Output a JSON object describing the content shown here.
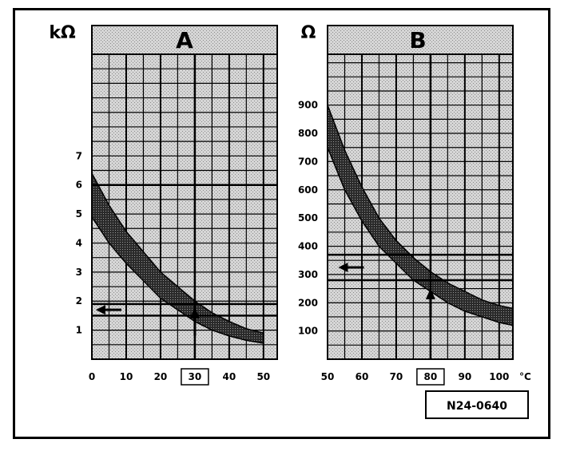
{
  "reference_code": "N24-0640",
  "chart_data": [
    {
      "type": "area",
      "title": "A",
      "ylabel": "kΩ",
      "xlabel": "",
      "xlim": [
        0,
        54
      ],
      "ylim": [
        0,
        10.5
      ],
      "grid": true,
      "x_ticks": [
        "0",
        "10",
        "20",
        "30",
        "40",
        "50"
      ],
      "y_ticks": [
        "1",
        "2",
        "3",
        "4",
        "5",
        "6",
        "7"
      ],
      "highlighted_x_tick": "30",
      "band": {
        "x": [
          0,
          5,
          10,
          15,
          20,
          25,
          30,
          35,
          40,
          45,
          50
        ],
        "upper": [
          6.4,
          5.3,
          4.4,
          3.7,
          3.0,
          2.5,
          2.0,
          1.6,
          1.3,
          1.05,
          0.9
        ],
        "lower": [
          4.9,
          4.0,
          3.3,
          2.7,
          2.1,
          1.7,
          1.3,
          1.0,
          0.8,
          0.65,
          0.55
        ]
      },
      "reference_lines": {
        "y": [
          1.5,
          1.9,
          6.0
        ],
        "x": [
          30
        ]
      },
      "arrows": [
        {
          "direction": "up",
          "x": 30,
          "y": 0.8
        },
        {
          "direction": "left",
          "x": 3,
          "y": 1.7
        }
      ]
    },
    {
      "type": "area",
      "title": "B",
      "ylabel": "Ω",
      "xlabel": "°C",
      "xlim": [
        50,
        104
      ],
      "ylim": [
        0,
        1080
      ],
      "grid": true,
      "x_ticks": [
        "50",
        "60",
        "70",
        "80",
        "90",
        "100"
      ],
      "y_ticks": [
        "100",
        "200",
        "300",
        "400",
        "500",
        "600",
        "700",
        "800",
        "900"
      ],
      "highlighted_x_tick": "80",
      "band": {
        "x": [
          50,
          55,
          60,
          65,
          70,
          75,
          80,
          85,
          90,
          95,
          100,
          104
        ],
        "upper": [
          900,
          740,
          610,
          500,
          420,
          360,
          310,
          270,
          240,
          210,
          190,
          180
        ],
        "lower": [
          750,
          600,
          490,
          400,
          340,
          280,
          240,
          200,
          170,
          150,
          130,
          120
        ]
      },
      "reference_lines": {
        "y": [
          280,
          370
        ],
        "x": [
          80
        ]
      },
      "arrows": [
        {
          "direction": "up",
          "x": 80,
          "y": 150
        },
        {
          "direction": "left",
          "x": 55,
          "y": 325
        }
      ]
    }
  ]
}
